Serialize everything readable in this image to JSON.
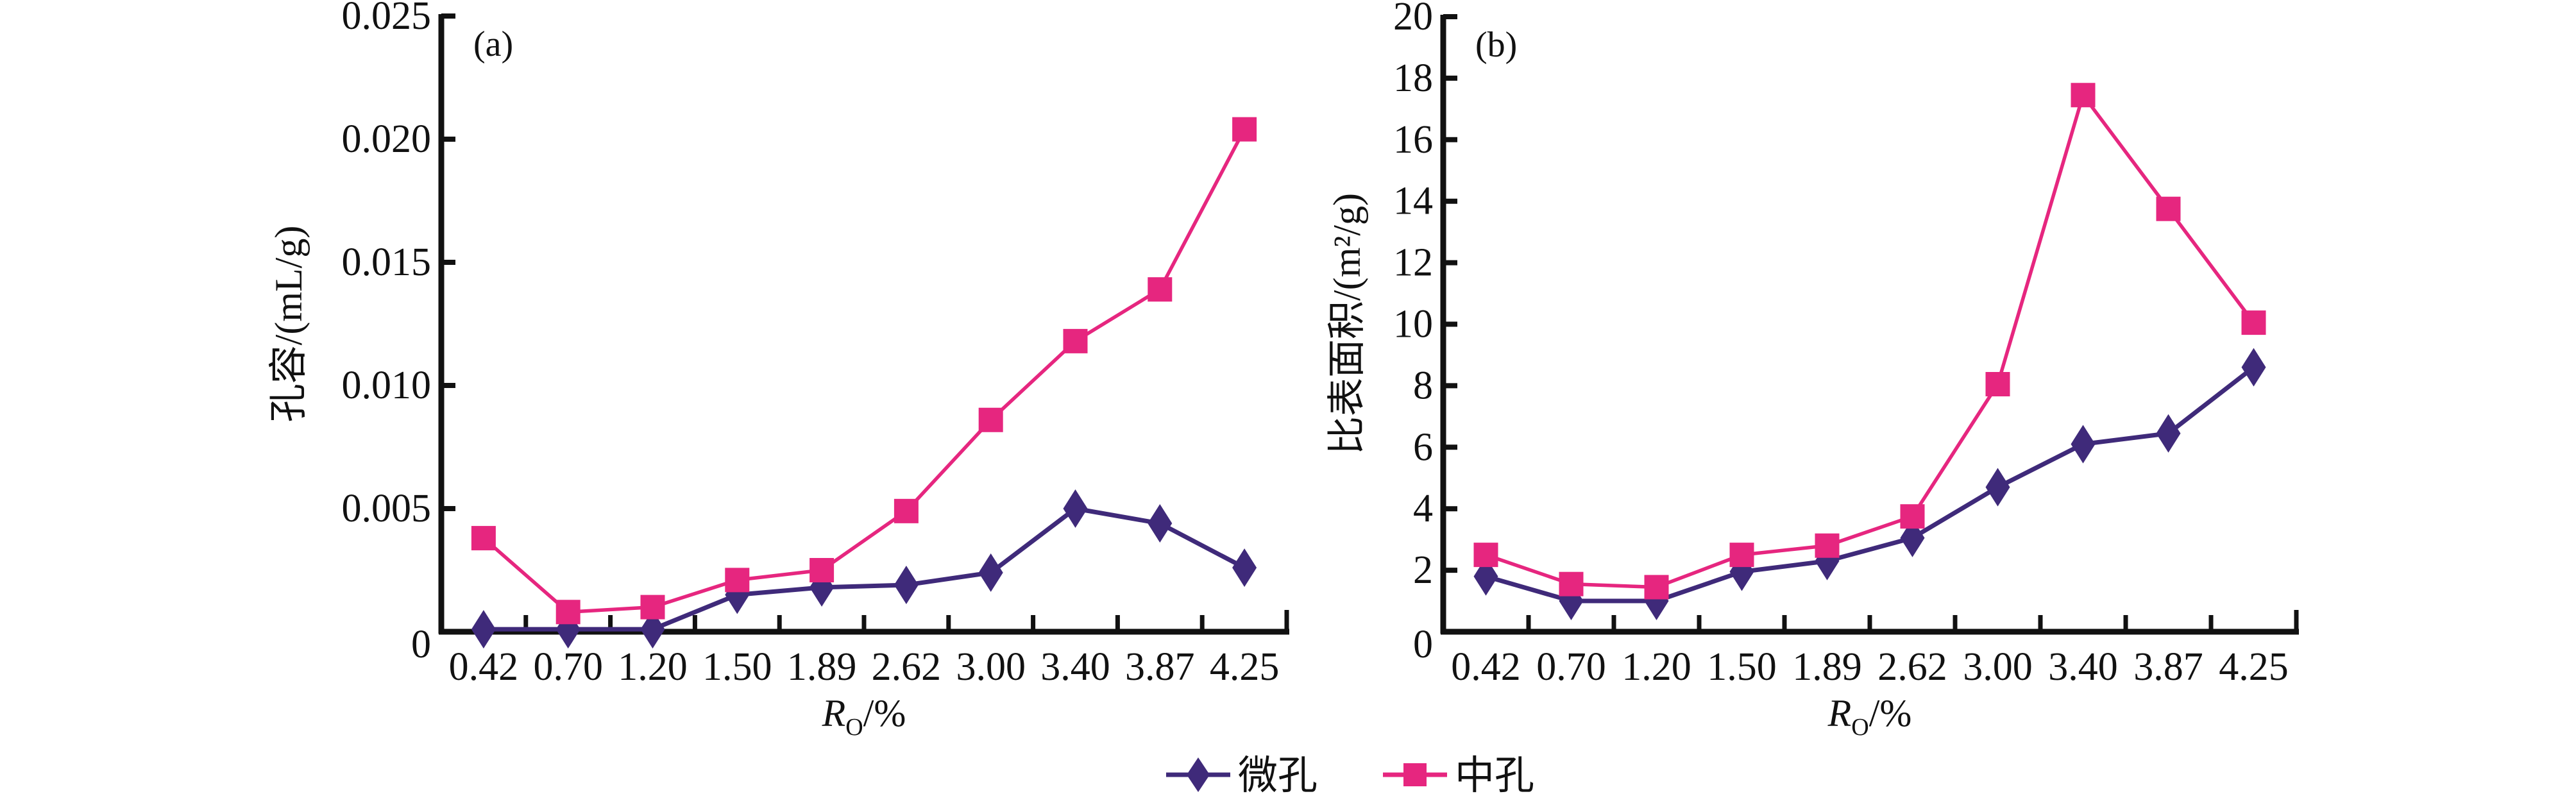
{
  "chart_data": [
    {
      "type": "line",
      "panel_label": "(a)",
      "title": "",
      "xlabel": "R_O/%",
      "xlabel_main": "R",
      "xlabel_sub": "O",
      "xlabel_suffix": "/%",
      "ylabel": "孔容/(mL/g)",
      "categories": [
        "0.42",
        "0.70",
        "1.20",
        "1.50",
        "1.89",
        "2.62",
        "3.00",
        "3.40",
        "3.87",
        "4.25"
      ],
      "ylim": [
        0,
        0.025
      ],
      "yticks": [
        "0",
        "0.005",
        "0.010",
        "0.015",
        "0.020",
        "0.025"
      ],
      "ytick_values": [
        0,
        0.005,
        0.01,
        0.015,
        0.02,
        0.025
      ],
      "grid": false,
      "series": [
        {
          "name": "微孔",
          "marker": "diamond",
          "color": "#3f2a7a",
          "values": [
            0.0001,
            0.0001,
            0.0001,
            0.0015,
            0.0018,
            0.0019,
            0.0024,
            0.005,
            0.0044,
            0.0026
          ]
        },
        {
          "name": "中孔",
          "marker": "square",
          "color": "#e6267f",
          "values": [
            0.0038,
            0.0008,
            0.001,
            0.0021,
            0.0025,
            0.0049,
            0.0086,
            0.0118,
            0.0139,
            0.0204
          ]
        }
      ]
    },
    {
      "type": "line",
      "panel_label": "(b)",
      "title": "",
      "xlabel": "R_O/%",
      "xlabel_main": "R",
      "xlabel_sub": "O",
      "xlabel_suffix": "/%",
      "ylabel": "比表面积/(m²/g)",
      "categories": [
        "0.42",
        "0.70",
        "1.20",
        "1.50",
        "1.89",
        "2.62",
        "3.00",
        "3.40",
        "3.87",
        "4.25"
      ],
      "ylim": [
        0,
        20
      ],
      "yticks": [
        "0",
        "2",
        "4",
        "6",
        "8",
        "10",
        "12",
        "14",
        "16",
        "18",
        "20"
      ],
      "ytick_values": [
        0,
        2,
        4,
        6,
        8,
        10,
        12,
        14,
        16,
        18,
        20
      ],
      "grid": false,
      "series": [
        {
          "name": "微孔",
          "marker": "diamond",
          "color": "#3f2a7a",
          "values": [
            1.8,
            1.0,
            1.0,
            1.95,
            2.3,
            3.05,
            4.7,
            6.1,
            6.45,
            8.6
          ]
        },
        {
          "name": "中孔",
          "marker": "square",
          "color": "#e6267f",
          "values": [
            2.5,
            1.55,
            1.45,
            2.5,
            2.8,
            3.75,
            8.05,
            17.45,
            13.75,
            10.05
          ]
        }
      ]
    }
  ],
  "legend": {
    "placement": "bottom-center",
    "items": [
      {
        "label": "微孔",
        "marker": "diamond",
        "color": "#3f2a7a"
      },
      {
        "label": "中孔",
        "marker": "square",
        "color": "#e6267f"
      }
    ]
  }
}
